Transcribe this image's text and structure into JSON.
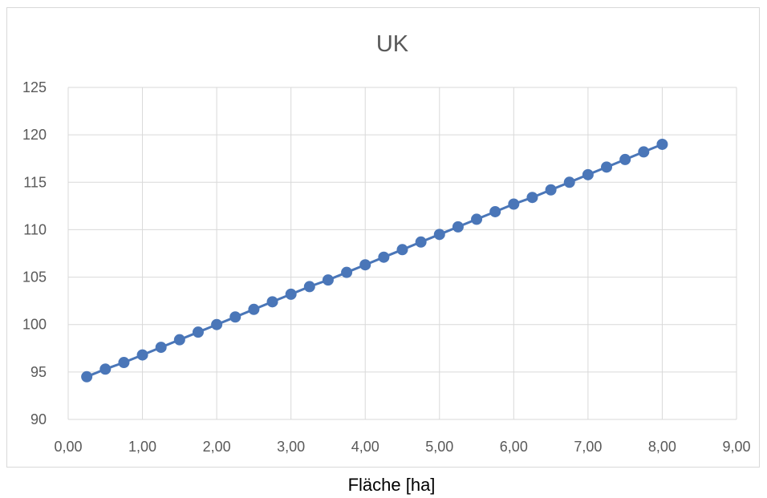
{
  "chart_data": {
    "type": "scatter",
    "title": "UK",
    "xlabel": "Fläche [ha]",
    "ylabel": "",
    "xlim": [
      0,
      9
    ],
    "ylim": [
      90,
      125
    ],
    "x_ticks": [
      "0,00",
      "1,00",
      "2,00",
      "3,00",
      "4,00",
      "5,00",
      "6,00",
      "7,00",
      "8,00",
      "9,00"
    ],
    "y_ticks": [
      "90",
      "95",
      "100",
      "105",
      "110",
      "115",
      "120",
      "125"
    ],
    "grid": true,
    "legend": "none",
    "line_style": "straight lines with markers",
    "series": [
      {
        "color": "#4a76b8",
        "x": [
          0.25,
          0.5,
          0.75,
          1.0,
          1.25,
          1.5,
          1.75,
          2.0,
          2.25,
          2.5,
          2.75,
          3.0,
          3.25,
          3.5,
          3.75,
          4.0,
          4.25,
          4.5,
          4.75,
          5.0,
          5.25,
          5.5,
          5.75,
          6.0,
          6.25,
          6.5,
          6.75,
          7.0,
          7.25,
          7.5,
          7.75,
          8.0
        ],
        "y": [
          94.5,
          95.3,
          96.0,
          96.8,
          97.6,
          98.4,
          99.2,
          100.0,
          100.8,
          101.6,
          102.4,
          103.2,
          104.0,
          104.7,
          105.5,
          106.3,
          107.1,
          107.9,
          108.7,
          109.5,
          110.3,
          111.1,
          111.9,
          112.7,
          113.4,
          114.2,
          115.0,
          115.8,
          116.6,
          117.4,
          118.2,
          119.0
        ]
      }
    ]
  },
  "colors": {
    "series": "#4a76b8",
    "grid": "#d9d9d9",
    "text": "#595959"
  }
}
